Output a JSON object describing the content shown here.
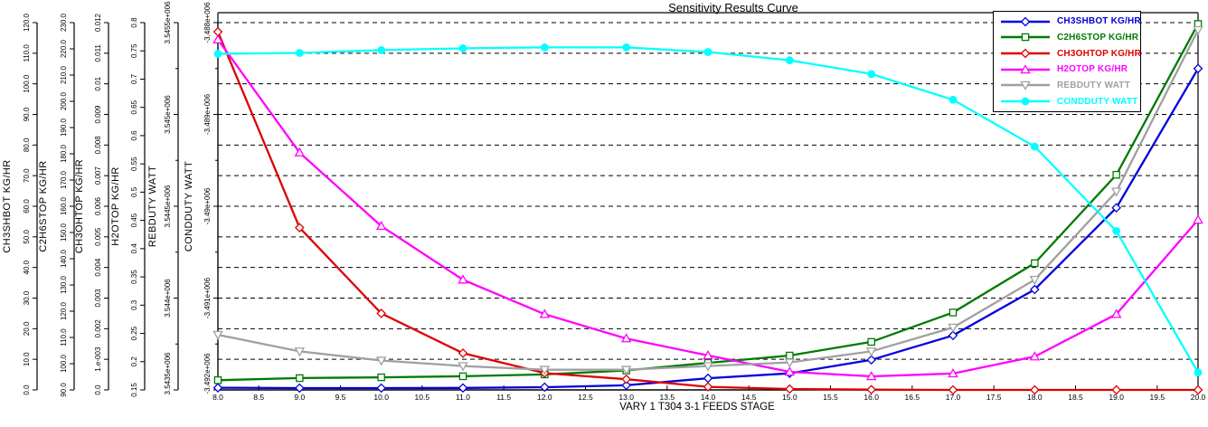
{
  "chart_data": {
    "type": "line",
    "title": "Sensitivity Results Curve",
    "xlabel": "VARY  1 T304 3-1 FEEDS STAGE",
    "legend_position": "top-right",
    "grid": "horizontal-dashed",
    "x_range": [
      8,
      20
    ],
    "x": [
      8,
      9,
      10,
      11,
      12,
      13,
      14,
      15,
      16,
      17,
      18,
      19,
      20
    ],
    "x_tick_labels": [
      "8.0",
      "8.5",
      "9.0",
      "9.5",
      "10.0",
      "10.5",
      "11.0",
      "11.5",
      "12.0",
      "12.5",
      "13.0",
      "13.5",
      "14.0",
      "14.5",
      "15.0",
      "15.5",
      "16.0",
      "16.5",
      "17.0",
      "17.5",
      "18.0",
      "18.5",
      "19.0",
      "19.5",
      "20.0"
    ],
    "series": [
      {
        "name": "CH3SHBOT KG/HR",
        "color": "#0000dd",
        "marker": "open-diamond",
        "axis": {
          "title": "CH3SHBOT KG/HR",
          "range": [
            0,
            120
          ],
          "tick_labels": [
            "0.0",
            "10.0",
            "20.0",
            "30.0",
            "40.0",
            "50.0",
            "60.0",
            "70.0",
            "80.0",
            "90.0",
            "100.0",
            "110.0",
            "120.0"
          ],
          "minor_ticks": false
        },
        "values": [
          0.7,
          0.6,
          0.6,
          0.65,
          0.9,
          1.5,
          3.8,
          5.4,
          9.8,
          17.8,
          32.8,
          59.5,
          105.0
        ]
      },
      {
        "name": "C2H6STOP KG/HR",
        "color": "#007a00",
        "marker": "open-square",
        "axis": {
          "title": "C2H6STOP KG/HR",
          "range": [
            90,
            230
          ],
          "tick_labels": [
            "90.0",
            "100.0",
            "110.0",
            "120.0",
            "130.0",
            "140.0",
            "150.0",
            "160.0",
            "170.0",
            "180.0",
            "190.0",
            "200.0",
            "210.0",
            "220.0",
            "230.0"
          ],
          "minor_ticks": false
        },
        "values": [
          93.7,
          94.5,
          94.8,
          95.2,
          95.9,
          97.4,
          100.3,
          103.1,
          108.3,
          119.5,
          138.3,
          172.0,
          229.5
        ]
      },
      {
        "name": "CH3OHTOP KG/HR",
        "color": "#dd0000",
        "marker": "open-diamond",
        "axis": {
          "title": "CH3OHTOP KG/HR",
          "range": [
            0,
            0.012
          ],
          "tick_labels": [
            "0.0",
            "1.e-003",
            "0.002",
            "0.003",
            "0.004",
            "0.005",
            "0.006",
            "0.007",
            "0.008",
            "0.009",
            "0.01",
            "0.011",
            "0.012"
          ],
          "minor_ticks": false
        },
        "values": [
          0.0117,
          0.0053,
          0.0025,
          0.0012,
          0.00055,
          0.00035,
          0.0001,
          3e-05,
          1e-05,
          0.0,
          0.0,
          0.0,
          0.0
        ]
      },
      {
        "name": "H2OTOP KG/HR",
        "color": "#ff00ff",
        "marker": "open-triangle-up",
        "axis": {
          "title": "H2OTOP KG/HR",
          "range": [
            0.15,
            0.8
          ],
          "tick_labels": [
            "0.15",
            "0.2",
            "0.25",
            "0.3",
            "0.35",
            "0.4",
            "0.45",
            "0.5",
            "0.55",
            "0.6",
            "0.65",
            "0.7",
            "0.75",
            "0.8"
          ],
          "minor_ticks": false
        },
        "values": [
          0.77,
          0.57,
          0.44,
          0.345,
          0.284,
          0.241,
          0.211,
          0.182,
          0.174,
          0.179,
          0.209,
          0.284,
          0.451
        ]
      },
      {
        "name": "REBDUTY WATT",
        "color": "#a0a0a0",
        "marker": "open-triangle-down",
        "axis": {
          "title": "REBDUTY WATT",
          "range": [
            3543500,
            3545500
          ],
          "tick_labels": [
            "3.5435e+006",
            "3.544e+006",
            "3.5445e+006",
            "3.545e+006",
            "3.5455e+006"
          ],
          "minor_ticks": true
        },
        "values": [
          3543800,
          3543710,
          3543660,
          3543630,
          3543610,
          3543610,
          3543630,
          3543650,
          3543710,
          3543840,
          3544100,
          3544580,
          3545460
        ]
      },
      {
        "name": "CONDDUTY WATT",
        "color": "#00ffff",
        "marker": "filled-circle",
        "axis": {
          "title": "CONDDUTY WATT",
          "range": [
            -3492000,
            -3488000
          ],
          "tick_labels": [
            "-3.492e+006",
            "-3.491e+006",
            "-3.49e+006",
            "-3.489e+006",
            "-3.488e+006"
          ],
          "minor_ticks": true
        },
        "values": [
          -3488340,
          -3488330,
          -3488300,
          -3488280,
          -3488270,
          -3488270,
          -3488320,
          -3488410,
          -3488560,
          -3488840,
          -3489350,
          -3490270,
          -3491810
        ]
      }
    ]
  }
}
